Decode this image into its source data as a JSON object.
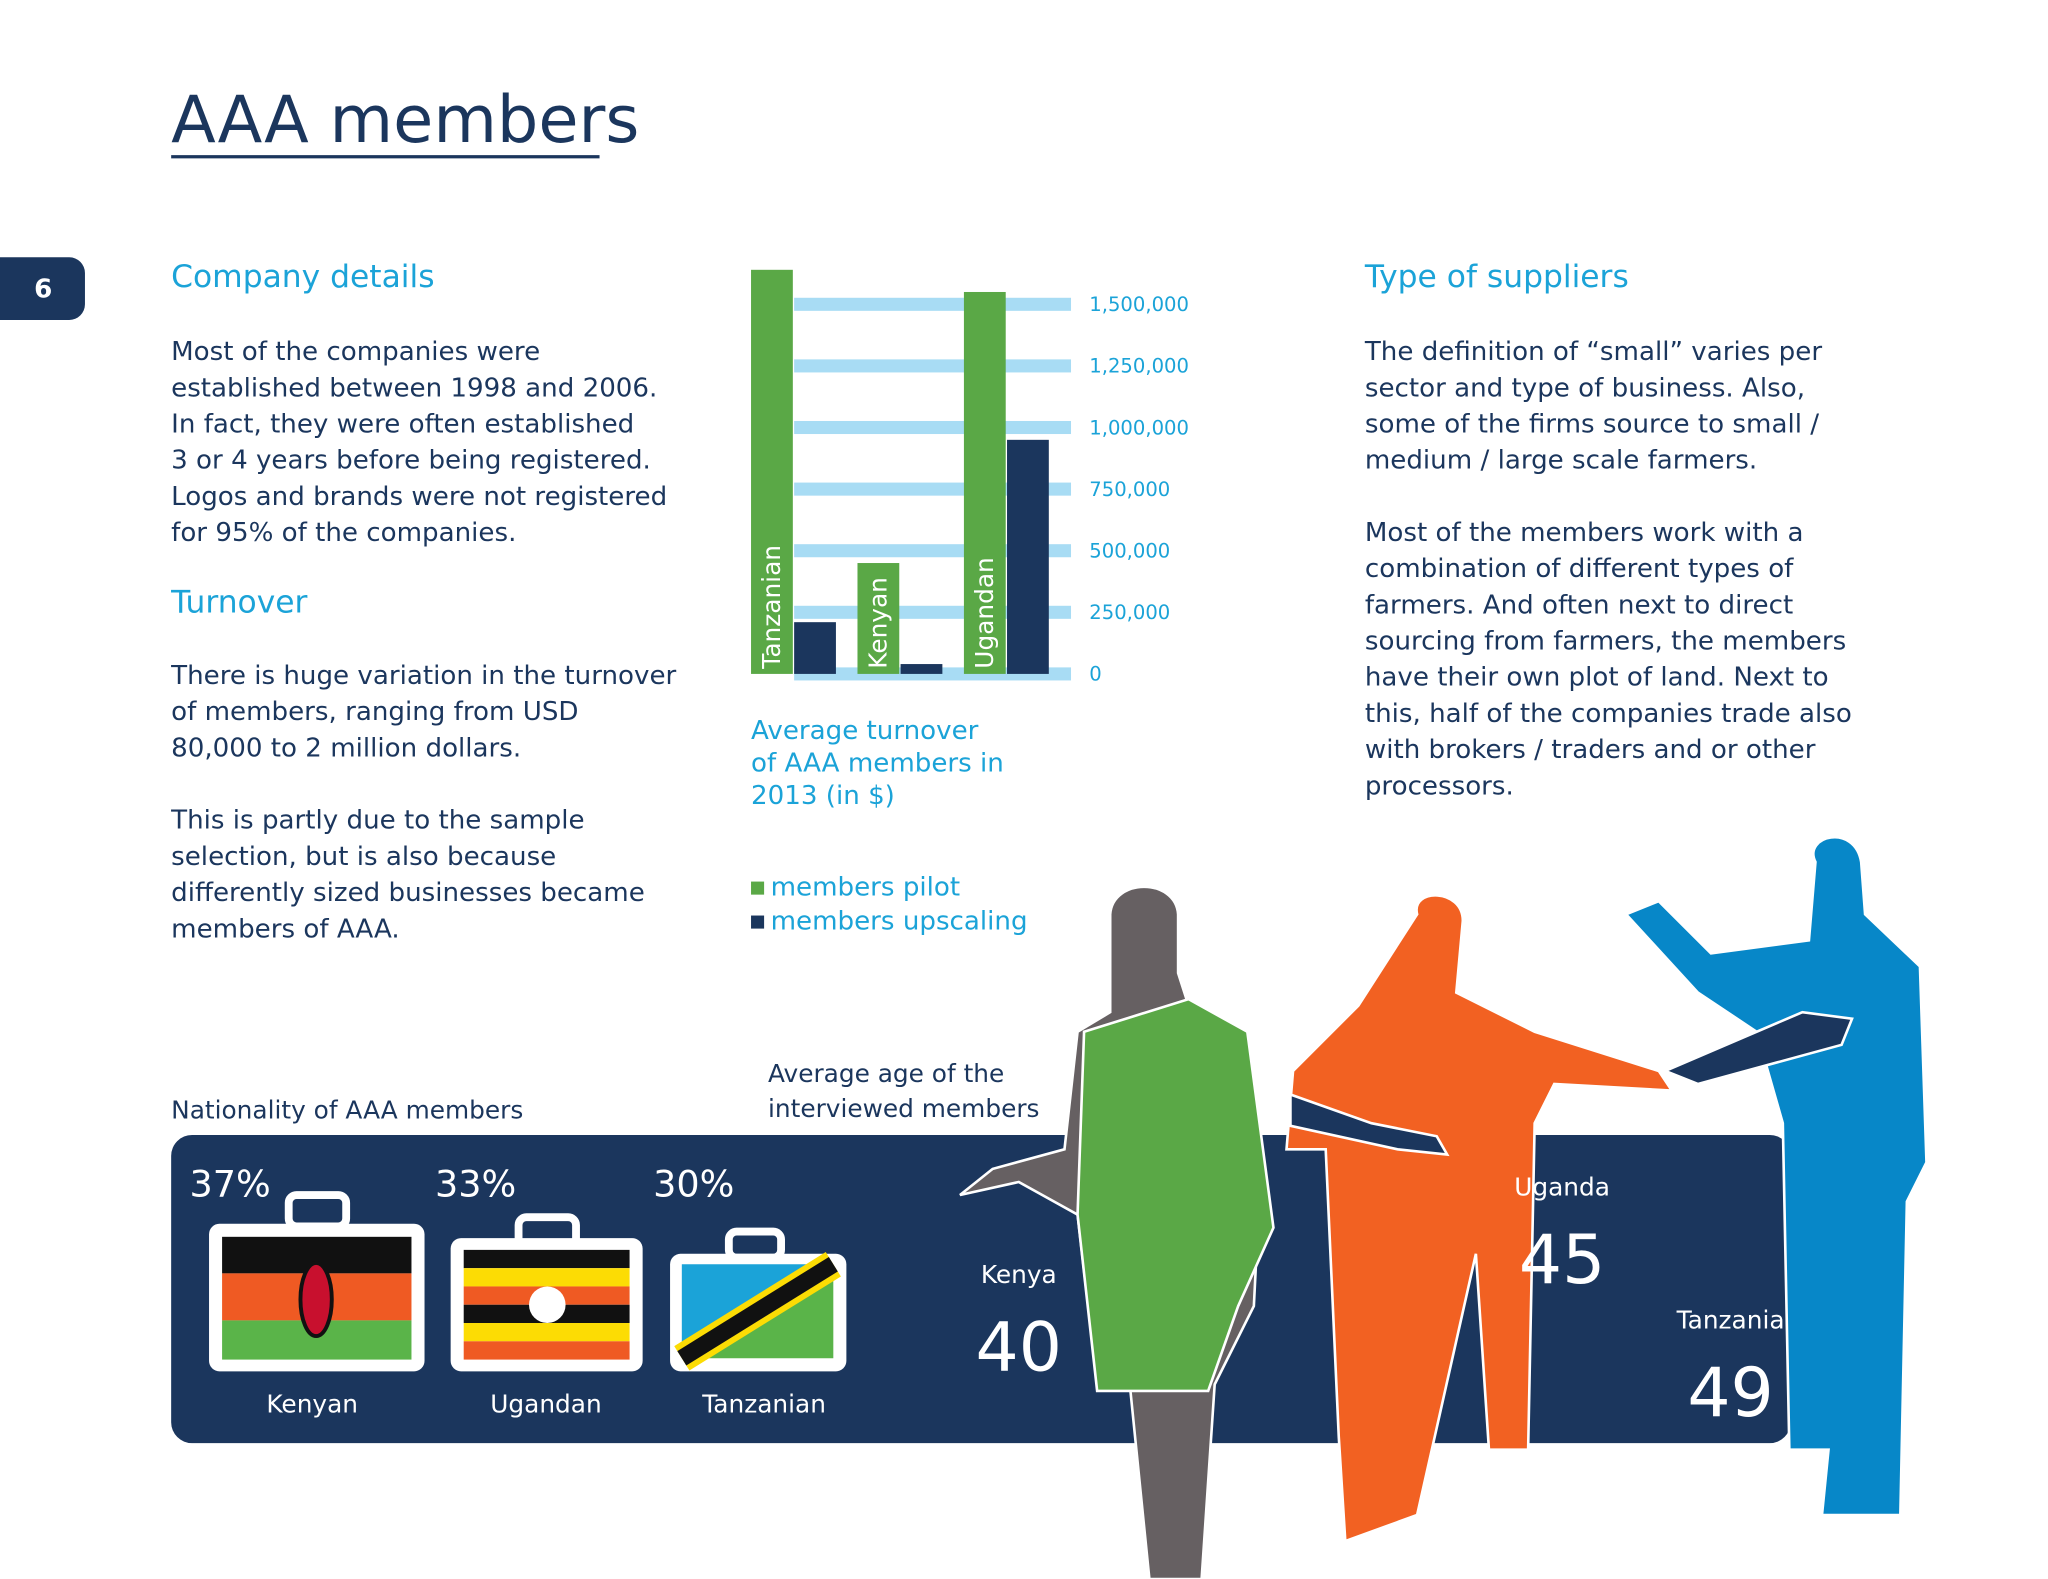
{
  "header": {
    "title": "AAA members",
    "page_number": "6"
  },
  "left": {
    "sections": [
      {
        "heading": "Company details",
        "paragraphs": [
          [
            "Most of the companies were",
            "established between 1998 and 2006.",
            "In fact, they were often established",
            "3 or 4 years before being registered.",
            "Logos and brands were not registered",
            "for 95% of the companies."
          ]
        ]
      },
      {
        "heading": "Turnover",
        "paragraphs": [
          [
            "There is huge variation in the turnover",
            "of members, ranging from USD",
            "80,000 to 2 million dollars."
          ],
          [
            "This is partly due to the sample",
            "selection, but is also because",
            "differently sized businesses became",
            "members of AAA."
          ]
        ]
      }
    ]
  },
  "right": {
    "heading": "Type of suppliers",
    "paragraphs": [
      [
        "The definition of “small” varies per",
        "sector and type of business. Also,",
        "some of the firms source to small /",
        "medium / large scale farmers."
      ],
      [
        "Most of the members work with a",
        "combination of different types of",
        "farmers. And often next to direct",
        "sourcing from farmers, the members",
        "have their own plot of land. Next to",
        "this, half of the companies trade also",
        "with brokers / traders and or other",
        "processors."
      ]
    ]
  },
  "chart_data": {
    "type": "bar",
    "caption": [
      "Average turnover",
      "of AAA members in",
      "2013 (in $)"
    ],
    "categories": [
      "Tanzanian",
      "Kenyan",
      "Ugandan"
    ],
    "series": [
      {
        "name": "members pilot",
        "color": "#5aa846",
        "values": [
          1640000,
          450000,
          1550000
        ]
      },
      {
        "name": "members upscaling",
        "color": "#1b365d",
        "values": [
          210000,
          40000,
          950000
        ]
      }
    ],
    "ylim": [
      0,
      1650000
    ],
    "yticks": [
      0,
      {
        "value": 250000,
        "label": "250,000"
      },
      {
        "value": 500000,
        "label": "500,000"
      },
      {
        "value": 750000,
        "label": "750,000"
      },
      {
        "value": 1000000,
        "label": "1,000,000"
      },
      {
        "value": 1250000,
        "label": "1,250,000"
      },
      {
        "value": 1500000,
        "label": "1,500,000"
      }
    ],
    "grid": true,
    "grid_color": "#a8dcf4"
  },
  "nationality": {
    "title": "Nationality of AAA members",
    "items": [
      {
        "share": "37%",
        "label": "Kenyan"
      },
      {
        "share": "33%",
        "label": "Ugandan"
      },
      {
        "share": "30%",
        "label": "Tanzanian"
      }
    ]
  },
  "age": {
    "title": [
      "Average age of the",
      "interviewed members"
    ],
    "items": [
      {
        "country": "Kenya",
        "age": 40
      },
      {
        "country": "Uganda",
        "age": 45
      },
      {
        "country": "Tanzania",
        "age": 49
      }
    ]
  }
}
